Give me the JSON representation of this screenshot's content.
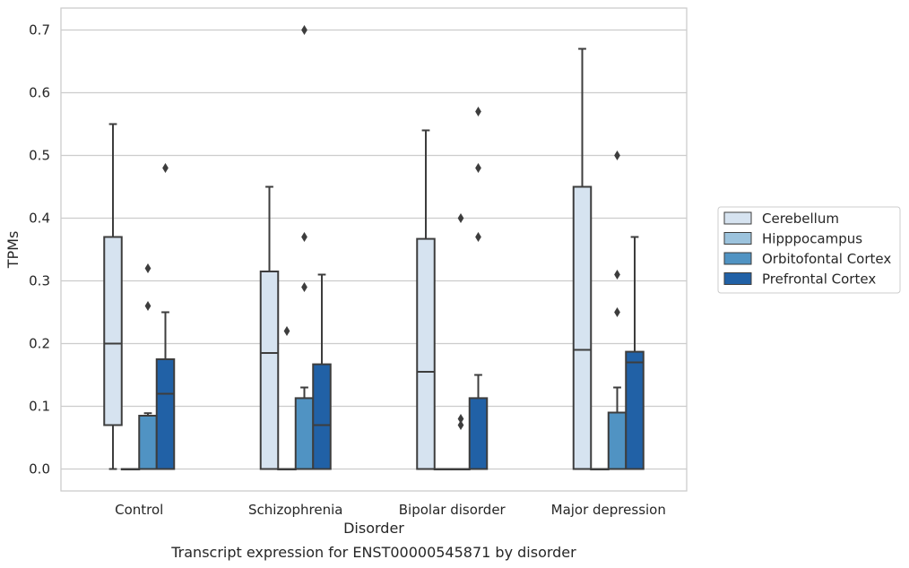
{
  "chart_data": {
    "type": "box",
    "title": "",
    "caption": "Transcript expression for ENST00000545871 by disorder",
    "xlabel": "Disorder",
    "ylabel": "TPMs",
    "ylim": [
      -0.035,
      0.735
    ],
    "yticks": [
      "0.0",
      "0.1",
      "0.2",
      "0.3",
      "0.4",
      "0.5",
      "0.6",
      "0.7"
    ],
    "grid": "horizontal",
    "legend_position": "right",
    "categories": [
      "Control",
      "Schizophrenia",
      "Bipolar disorder",
      "Major depression"
    ],
    "series": [
      {
        "name": "Cerebellum",
        "color": "#d6e3f0",
        "boxes": [
          {
            "q1": 0.07,
            "median": 0.2,
            "q3": 0.37,
            "whisker_low": 0.0,
            "whisker_high": 0.55,
            "outliers": []
          },
          {
            "q1": 0.0,
            "median": 0.185,
            "q3": 0.315,
            "whisker_low": 0.0,
            "whisker_high": 0.45,
            "outliers": []
          },
          {
            "q1": 0.0,
            "median": 0.155,
            "q3": 0.367,
            "whisker_low": 0.0,
            "whisker_high": 0.54,
            "outliers": []
          },
          {
            "q1": 0.0,
            "median": 0.19,
            "q3": 0.45,
            "whisker_low": 0.0,
            "whisker_high": 0.67,
            "outliers": []
          }
        ]
      },
      {
        "name": "Hipppocampus",
        "color": "#9cc3dd",
        "boxes": [
          {
            "q1": 0.0,
            "median": 0.0,
            "q3": 0.0,
            "whisker_low": 0.0,
            "whisker_high": 0.0,
            "outliers": []
          },
          {
            "q1": 0.0,
            "median": 0.0,
            "q3": 0.0,
            "whisker_low": 0.0,
            "whisker_high": 0.0,
            "outliers": [
              0.22
            ]
          },
          {
            "q1": 0.0,
            "median": 0.0,
            "q3": 0.0,
            "whisker_low": 0.0,
            "whisker_high": 0.0,
            "outliers": []
          },
          {
            "q1": 0.0,
            "median": 0.0,
            "q3": 0.0,
            "whisker_low": 0.0,
            "whisker_high": 0.0,
            "outliers": []
          }
        ]
      },
      {
        "name": "Orbitofontal Cortex",
        "color": "#5093c3",
        "boxes": [
          {
            "q1": 0.0,
            "median": 0.0,
            "q3": 0.085,
            "whisker_low": 0.0,
            "whisker_high": 0.089,
            "outliers": [
              0.26,
              0.32
            ]
          },
          {
            "q1": 0.0,
            "median": 0.0,
            "q3": 0.113,
            "whisker_low": 0.0,
            "whisker_high": 0.13,
            "outliers": [
              0.29,
              0.37,
              0.7
            ]
          },
          {
            "q1": 0.0,
            "median": 0.0,
            "q3": 0.0,
            "whisker_low": 0.0,
            "whisker_high": 0.0,
            "outliers": [
              0.07,
              0.08,
              0.4
            ]
          },
          {
            "q1": 0.0,
            "median": 0.0,
            "q3": 0.09,
            "whisker_low": 0.0,
            "whisker_high": 0.13,
            "outliers": [
              0.25,
              0.31,
              0.5
            ]
          }
        ]
      },
      {
        "name": "Prefrontal Cortex",
        "color": "#2161a6",
        "boxes": [
          {
            "q1": 0.0,
            "median": 0.12,
            "q3": 0.175,
            "whisker_low": 0.0,
            "whisker_high": 0.25,
            "outliers": [
              0.48
            ]
          },
          {
            "q1": 0.0,
            "median": 0.07,
            "q3": 0.167,
            "whisker_low": 0.0,
            "whisker_high": 0.31,
            "outliers": []
          },
          {
            "q1": 0.0,
            "median": 0.0,
            "q3": 0.113,
            "whisker_low": 0.0,
            "whisker_high": 0.15,
            "outliers": [
              0.37,
              0.48,
              0.57
            ]
          },
          {
            "q1": 0.0,
            "median": 0.17,
            "q3": 0.187,
            "whisker_low": 0.0,
            "whisker_high": 0.37,
            "outliers": []
          }
        ]
      }
    ]
  }
}
